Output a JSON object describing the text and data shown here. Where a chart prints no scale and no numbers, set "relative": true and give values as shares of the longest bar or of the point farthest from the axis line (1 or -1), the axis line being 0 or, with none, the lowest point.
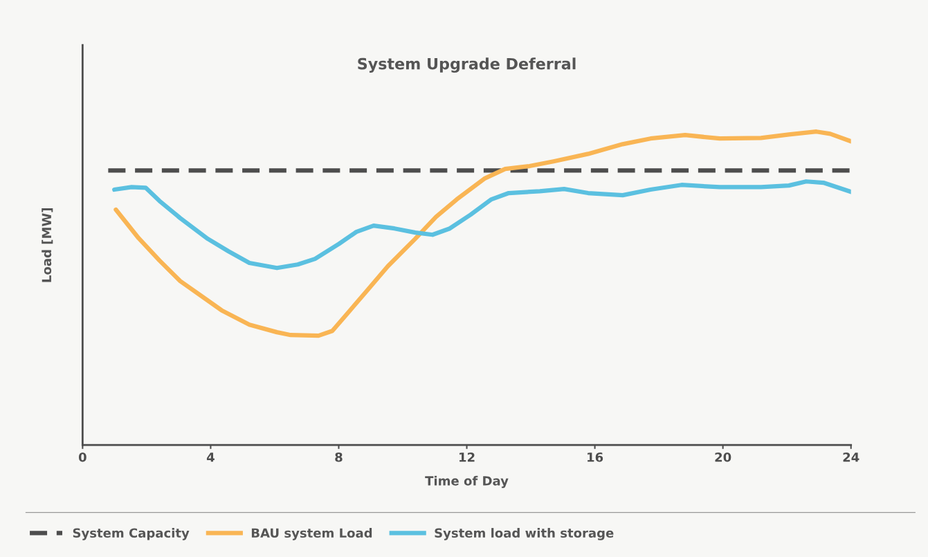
{
  "chart_data": {
    "type": "line",
    "title": "System Upgrade Deferral",
    "xlabel": "Time of Day",
    "ylabel": "Load [MW]",
    "relative": true,
    "xlim": [
      0,
      24
    ],
    "xticks": [
      0,
      4,
      8,
      12,
      16,
      20,
      24
    ],
    "grid": false,
    "legend": "bottom",
    "marker": "none",
    "series": [
      {
        "name": "System Capacity",
        "color": "#4d4d4d",
        "line_style": "dashed",
        "x": [
          0.8,
          24
        ],
        "values": [
          0.876,
          0.876
        ]
      },
      {
        "name": "BAU system Load",
        "color": "#f9b554",
        "line_style": "solid",
        "x": [
          1.04,
          1.75,
          2.4,
          3.05,
          3.69,
          4.34,
          5.21,
          6.07,
          6.5,
          7.37,
          7.8,
          8.23,
          8.88,
          9.53,
          10.39,
          11.04,
          11.69,
          12.55,
          13.2,
          13.96,
          14.71,
          15.79,
          16.87,
          17.74,
          18.82,
          19.9,
          21.19,
          22.06,
          22.92,
          23.35,
          24.0
        ],
        "values": [
          0.751,
          0.66,
          0.589,
          0.523,
          0.477,
          0.43,
          0.384,
          0.36,
          0.351,
          0.349,
          0.364,
          0.415,
          0.492,
          0.57,
          0.658,
          0.728,
          0.784,
          0.85,
          0.881,
          0.89,
          0.905,
          0.929,
          0.96,
          0.978,
          0.989,
          0.978,
          0.98,
          0.991,
          1.0,
          0.993,
          0.969
        ]
      },
      {
        "name": "System load with storage",
        "color": "#5bc0e0",
        "line_style": "solid",
        "x": [
          0.99,
          1.53,
          1.97,
          2.4,
          3.05,
          3.91,
          4.56,
          5.21,
          6.07,
          6.72,
          7.26,
          8.01,
          8.55,
          9.09,
          9.74,
          10.39,
          10.93,
          11.47,
          12.12,
          12.77,
          13.31,
          14.28,
          15.04,
          15.79,
          16.87,
          17.74,
          18.71,
          19.9,
          21.19,
          22.06,
          22.6,
          23.14,
          24.0
        ],
        "values": [
          0.815,
          0.823,
          0.821,
          0.779,
          0.724,
          0.658,
          0.618,
          0.581,
          0.565,
          0.576,
          0.594,
          0.642,
          0.68,
          0.7,
          0.691,
          0.678,
          0.671,
          0.691,
          0.735,
          0.784,
          0.804,
          0.81,
          0.817,
          0.804,
          0.797,
          0.815,
          0.83,
          0.823,
          0.823,
          0.828,
          0.841,
          0.837,
          0.808
        ]
      }
    ]
  }
}
